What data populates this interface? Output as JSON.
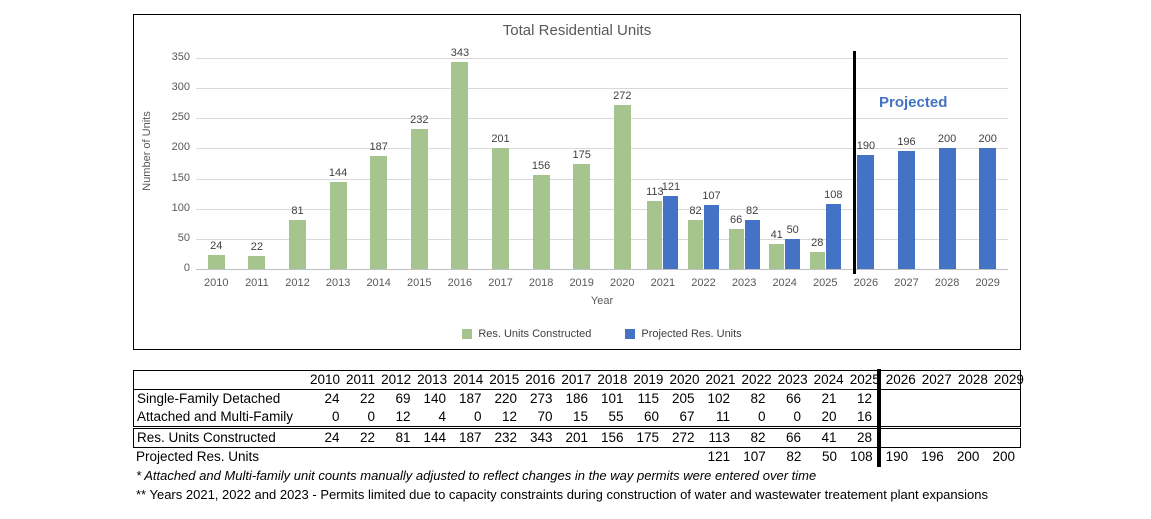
{
  "chart": {
    "title": "Total Residential Units",
    "y_axis_title": "Number of Units",
    "x_axis_title": "Year",
    "projected_annotation": "Projected",
    "legend": [
      {
        "label": "Res. Units Constructed",
        "color": "#a5c48e"
      },
      {
        "label": "Projected Res. Units",
        "color": "#4472c4"
      }
    ]
  },
  "chart_data": {
    "type": "bar",
    "title": "Total Residential Units",
    "xlabel": "Year",
    "ylabel": "Number of Units",
    "ylim": [
      0,
      350
    ],
    "ytick_step": 50,
    "grid": true,
    "legend_position": "bottom",
    "categories": [
      "2010",
      "2011",
      "2012",
      "2013",
      "2014",
      "2015",
      "2016",
      "2017",
      "2018",
      "2019",
      "2020",
      "2021",
      "2022",
      "2023",
      "2024",
      "2025",
      "2026",
      "2027",
      "2028",
      "2029"
    ],
    "series": [
      {
        "name": "Res. Units Constructed",
        "color": "#a5c48e",
        "values": [
          24,
          22,
          81,
          144,
          187,
          232,
          343,
          201,
          156,
          175,
          272,
          113,
          82,
          66,
          41,
          28,
          null,
          null,
          null,
          null
        ]
      },
      {
        "name": "Projected Res. Units",
        "color": "#4472c4",
        "values": [
          null,
          null,
          null,
          null,
          null,
          null,
          null,
          null,
          null,
          null,
          null,
          121,
          107,
          82,
          50,
          108,
          190,
          196,
          200,
          200
        ]
      }
    ],
    "divider_before_category": "2026",
    "annotation": {
      "text": "Projected",
      "color": "#4472c4"
    }
  },
  "table": {
    "year_headers": [
      "2010",
      "2011",
      "2012",
      "2013",
      "2014",
      "2015",
      "2016",
      "2017",
      "2018",
      "2019",
      "2020",
      "2021",
      "2022",
      "2023",
      "2024",
      "2025",
      "2026",
      "2027",
      "2028",
      "2029"
    ],
    "rows": [
      {
        "label": "Single-Family Detached",
        "values": [
          24,
          22,
          69,
          140,
          187,
          220,
          273,
          186,
          101,
          115,
          205,
          102,
          82,
          66,
          21,
          12,
          "",
          "",
          "",
          ""
        ]
      },
      {
        "label": "Attached and Multi-Family",
        "values": [
          0,
          0,
          12,
          4,
          0,
          12,
          70,
          15,
          55,
          60,
          67,
          11,
          0,
          0,
          20,
          16,
          "",
          "",
          "",
          ""
        ]
      },
      {
        "label": "Res. Units Constructed",
        "values": [
          24,
          22,
          81,
          144,
          187,
          232,
          343,
          201,
          156,
          175,
          272,
          113,
          82,
          66,
          41,
          28,
          "",
          "",
          "",
          ""
        ]
      },
      {
        "label": "Projected Res. Units",
        "values": [
          "",
          "",
          "",
          "",
          "",
          "",
          "",
          "",
          "",
          "",
          "",
          121,
          107,
          82,
          50,
          108,
          190,
          196,
          200,
          200
        ]
      }
    ]
  },
  "footnotes": [
    "* Attached and Multi-family unit counts manually adjusted to reflect changes in the way permits were entered over time",
    "**  Years 2021, 2022 and 2023 - Permits limited due to capacity constraints during construction of water and wastewater treatement plant expansions"
  ]
}
